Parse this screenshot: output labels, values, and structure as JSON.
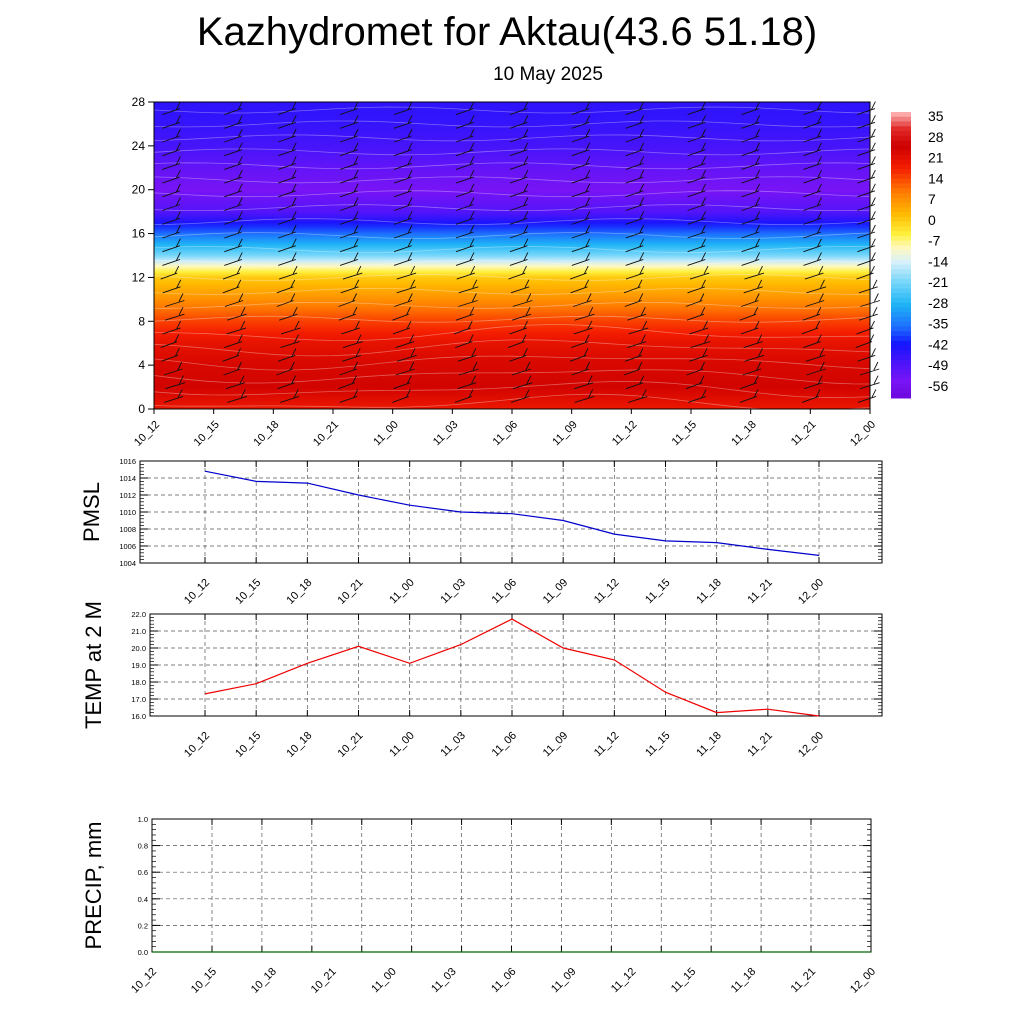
{
  "title": "Kazhydromet for Aktau(43.6 51.18)",
  "subtitle": "10 May 2025",
  "chart_data": [
    {
      "type": "heatmap",
      "name": "temperature-height-section",
      "xlabel": "",
      "ylabel": "",
      "x": [
        "10_12",
        "10_15",
        "10_18",
        "10_21",
        "11_00",
        "11_03",
        "11_06",
        "11_09",
        "11_12",
        "11_15",
        "11_18",
        "11_21",
        "12_00"
      ],
      "yticks": [
        0,
        4,
        8,
        12,
        16,
        20,
        24,
        28
      ],
      "ylim": [
        0,
        28
      ],
      "colorbar": {
        "labels": [
          35,
          28,
          21,
          14,
          7,
          0,
          -7,
          -14,
          -21,
          -28,
          -35,
          -42,
          -49,
          -56
        ],
        "range": [
          -63,
          38
        ]
      },
      "profile": {
        "levels": [
          0,
          2,
          4,
          6,
          8,
          10,
          12,
          13,
          14,
          16,
          18,
          20,
          22,
          24,
          26,
          28
        ],
        "temps": [
          20,
          25,
          24,
          21,
          15,
          7,
          0,
          -10,
          -22,
          -38,
          -52,
          -57,
          -54,
          -50,
          -48,
          -47
        ]
      },
      "wind_barbs": true
    },
    {
      "type": "line",
      "name": "pmsl",
      "ylabel": "PMSL",
      "categories": [
        "10_12",
        "10_15",
        "10_18",
        "10_21",
        "11_00",
        "11_03",
        "11_06",
        "11_09",
        "11_12",
        "11_15",
        "11_18",
        "11_21",
        "12_00"
      ],
      "values": [
        1014.8,
        1013.6,
        1013.4,
        1012.0,
        1010.8,
        1010.0,
        1009.8,
        1009.0,
        1007.4,
        1006.6,
        1006.4,
        1005.6,
        1004.9
      ],
      "yticks": [
        "1004",
        "1006",
        "1008",
        "1010",
        "1012",
        "1014",
        "1016"
      ],
      "ylim": [
        1004,
        1016
      ],
      "color": "#0000cc",
      "grid": true
    },
    {
      "type": "line",
      "name": "temp-2m",
      "ylabel": "TEMP at 2 M",
      "categories": [
        "10_12",
        "10_15",
        "10_18",
        "10_21",
        "11_00",
        "11_03",
        "11_06",
        "11_09",
        "11_12",
        "11_15",
        "11_18",
        "11_21",
        "12_00"
      ],
      "values": [
        17.3,
        17.9,
        19.1,
        20.1,
        19.1,
        20.2,
        21.7,
        20.0,
        19.3,
        17.4,
        16.2,
        16.4,
        16.0
      ],
      "yticks": [
        "16.0",
        "17.0",
        "18.0",
        "19.0",
        "20.0",
        "21.0",
        "22.0"
      ],
      "ylim": [
        16,
        22
      ],
      "color": "#ee0000",
      "grid": true
    },
    {
      "type": "line",
      "name": "precip",
      "ylabel": "PRECIP, mm",
      "categories": [
        "10_12",
        "10_15",
        "10_18",
        "10_21",
        "11_00",
        "11_03",
        "11_06",
        "11_09",
        "11_12",
        "11_15",
        "11_18",
        "11_21",
        "12_00"
      ],
      "values": [
        0,
        0,
        0,
        0,
        0,
        0,
        0,
        0,
        0,
        0,
        0,
        0,
        0
      ],
      "yticks": [
        "0.0",
        "0.2",
        "0.4",
        "0.6",
        "0.8",
        "1.0"
      ],
      "ylim": [
        0,
        1
      ],
      "color": "#006600",
      "grid": true
    }
  ]
}
